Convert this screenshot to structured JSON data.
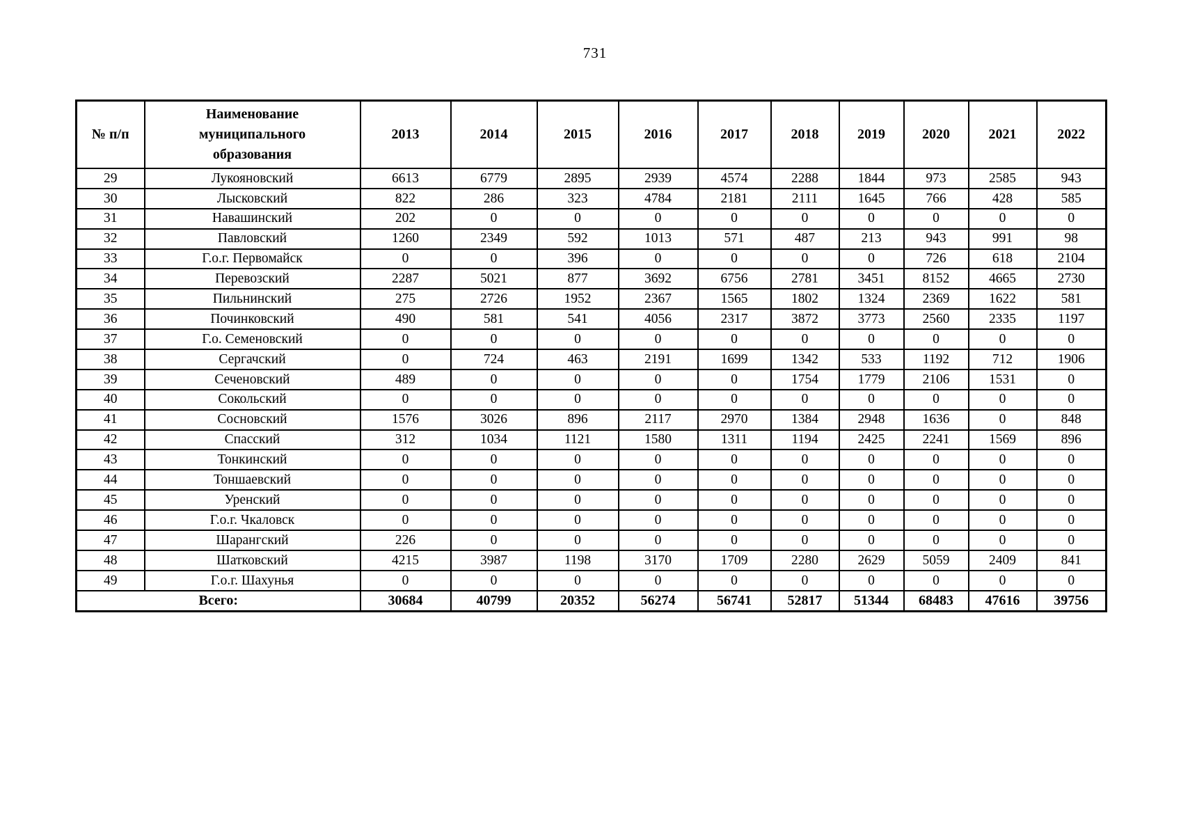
{
  "page_number": "731",
  "table": {
    "columns": [
      "№ п/п",
      "Наименование муниципального образования",
      "2013",
      "2014",
      "2015",
      "2016",
      "2017",
      "2018",
      "2019",
      "2020",
      "2021",
      "2022"
    ],
    "rows": [
      {
        "num": "29",
        "name": "Лукояновский",
        "values": [
          "6613",
          "6779",
          "2895",
          "2939",
          "4574",
          "2288",
          "1844",
          "973",
          "2585",
          "943"
        ]
      },
      {
        "num": "30",
        "name": "Лысковский",
        "values": [
          "822",
          "286",
          "323",
          "4784",
          "2181",
          "2111",
          "1645",
          "766",
          "428",
          "585"
        ]
      },
      {
        "num": "31",
        "name": "Навашинский",
        "values": [
          "202",
          "0",
          "0",
          "0",
          "0",
          "0",
          "0",
          "0",
          "0",
          "0"
        ]
      },
      {
        "num": "32",
        "name": "Павловский",
        "values": [
          "1260",
          "2349",
          "592",
          "1013",
          "571",
          "487",
          "213",
          "943",
          "991",
          "98"
        ]
      },
      {
        "num": "33",
        "name": "Г.о.г. Первомайск",
        "values": [
          "0",
          "0",
          "396",
          "0",
          "0",
          "0",
          "0",
          "726",
          "618",
          "2104"
        ]
      },
      {
        "num": "34",
        "name": "Перевозский",
        "values": [
          "2287",
          "5021",
          "877",
          "3692",
          "6756",
          "2781",
          "3451",
          "8152",
          "4665",
          "2730"
        ]
      },
      {
        "num": "35",
        "name": "Пильнинский",
        "values": [
          "275",
          "2726",
          "1952",
          "2367",
          "1565",
          "1802",
          "1324",
          "2369",
          "1622",
          "581"
        ]
      },
      {
        "num": "36",
        "name": "Починковский",
        "values": [
          "490",
          "581",
          "541",
          "4056",
          "2317",
          "3872",
          "3773",
          "2560",
          "2335",
          "1197"
        ]
      },
      {
        "num": "37",
        "name": "Г.о. Семеновский",
        "values": [
          "0",
          "0",
          "0",
          "0",
          "0",
          "0",
          "0",
          "0",
          "0",
          "0"
        ]
      },
      {
        "num": "38",
        "name": "Сергачский",
        "values": [
          "0",
          "724",
          "463",
          "2191",
          "1699",
          "1342",
          "533",
          "1192",
          "712",
          "1906"
        ]
      },
      {
        "num": "39",
        "name": "Сеченовский",
        "values": [
          "489",
          "0",
          "0",
          "0",
          "0",
          "1754",
          "1779",
          "2106",
          "1531",
          "0"
        ]
      },
      {
        "num": "40",
        "name": "Сокольский",
        "values": [
          "0",
          "0",
          "0",
          "0",
          "0",
          "0",
          "0",
          "0",
          "0",
          "0"
        ]
      },
      {
        "num": "41",
        "name": "Сосновский",
        "values": [
          "1576",
          "3026",
          "896",
          "2117",
          "2970",
          "1384",
          "2948",
          "1636",
          "0",
          "848"
        ]
      },
      {
        "num": "42",
        "name": "Спасский",
        "values": [
          "312",
          "1034",
          "1121",
          "1580",
          "1311",
          "1194",
          "2425",
          "2241",
          "1569",
          "896"
        ]
      },
      {
        "num": "43",
        "name": "Тонкинский",
        "values": [
          "0",
          "0",
          "0",
          "0",
          "0",
          "0",
          "0",
          "0",
          "0",
          "0"
        ]
      },
      {
        "num": "44",
        "name": "Тоншаевский",
        "values": [
          "0",
          "0",
          "0",
          "0",
          "0",
          "0",
          "0",
          "0",
          "0",
          "0"
        ]
      },
      {
        "num": "45",
        "name": "Уренский",
        "values": [
          "0",
          "0",
          "0",
          "0",
          "0",
          "0",
          "0",
          "0",
          "0",
          "0"
        ]
      },
      {
        "num": "46",
        "name": "Г.о.г. Чкаловск",
        "values": [
          "0",
          "0",
          "0",
          "0",
          "0",
          "0",
          "0",
          "0",
          "0",
          "0"
        ]
      },
      {
        "num": "47",
        "name": "Шарангский",
        "values": [
          "226",
          "0",
          "0",
          "0",
          "0",
          "0",
          "0",
          "0",
          "0",
          "0"
        ]
      },
      {
        "num": "48",
        "name": "Шатковский",
        "values": [
          "4215",
          "3987",
          "1198",
          "3170",
          "1709",
          "2280",
          "2629",
          "5059",
          "2409",
          "841"
        ]
      },
      {
        "num": "49",
        "name": "Г.о.г. Шахунья",
        "values": [
          "0",
          "0",
          "0",
          "0",
          "0",
          "0",
          "0",
          "0",
          "0",
          "0"
        ]
      }
    ],
    "total": {
      "label": "Всего:",
      "values": [
        "30684",
        "40799",
        "20352",
        "56274",
        "56741",
        "52817",
        "51344",
        "68483",
        "47616",
        "39756"
      ]
    }
  }
}
